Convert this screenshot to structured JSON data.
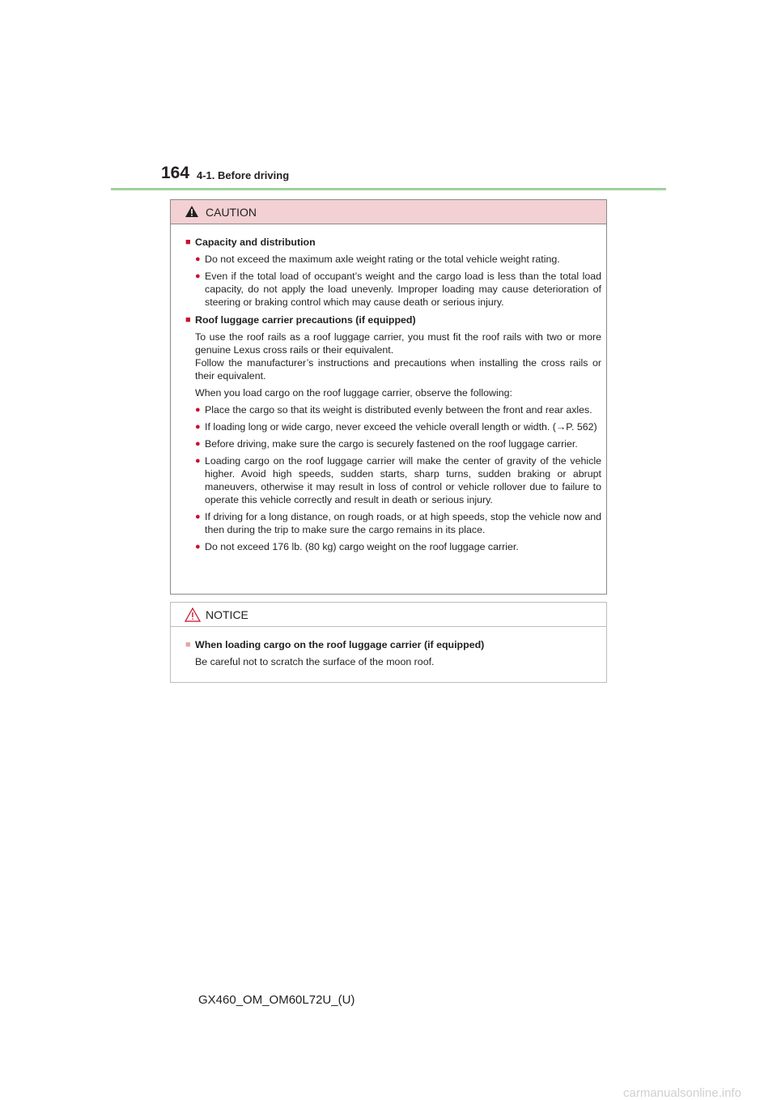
{
  "header": {
    "page_number": "164",
    "section": "4-1. Before driving"
  },
  "caution": {
    "title": "CAUTION",
    "sections": [
      {
        "heading": "Capacity and distribution",
        "bullets": [
          "Do not exceed the maximum axle weight rating or the total vehicle weight rating.",
          "Even if the total load of occupant’s weight and the cargo load is less than the total load capacity, do not apply the load unevenly. Improper loading may cause deterioration of steering or braking control which may cause death or serious injury."
        ]
      },
      {
        "heading": "Roof luggage carrier precautions (if equipped)",
        "paragraphs": [
          "To use the roof rails as a roof luggage carrier, you must fit the roof rails with two or more genuine Lexus cross rails or their equivalent.",
          "Follow the manufacturer’s instructions and precautions when installing the cross rails or their equivalent.",
          "When you load cargo on the roof luggage carrier, observe the following:"
        ],
        "bullets": [
          "Place the cargo so that its weight is distributed evenly between the front and rear axles.",
          "If loading long or wide cargo, never exceed the vehicle overall length or width. (→P. 562)",
          "Before driving, make sure the cargo is securely fastened on the roof luggage carrier.",
          "Loading cargo on the roof luggage carrier will make the center of gravity of the vehicle higher. Avoid high speeds, sudden starts, sharp turns, sudden braking or abrupt maneuvers, otherwise it may result in loss of control or vehicle rollover due to failure to operate this vehicle correctly and result in death or serious injury.",
          "If driving for a long distance, on rough roads, or at high speeds, stop the vehicle now and then during the trip to make sure the cargo remains in its place.",
          "Do not exceed 176 lb. (80 kg) cargo weight on the roof luggage carrier."
        ]
      }
    ]
  },
  "notice": {
    "title": "NOTICE",
    "sections": [
      {
        "heading": "When loading cargo on the roof luggage carrier (if equipped)",
        "text": "Be careful not to scratch the surface of the moon roof."
      }
    ]
  },
  "footer": {
    "code": "GX460_OM_OM60L72U_(U)"
  },
  "watermark": "carmanualsonline.info"
}
